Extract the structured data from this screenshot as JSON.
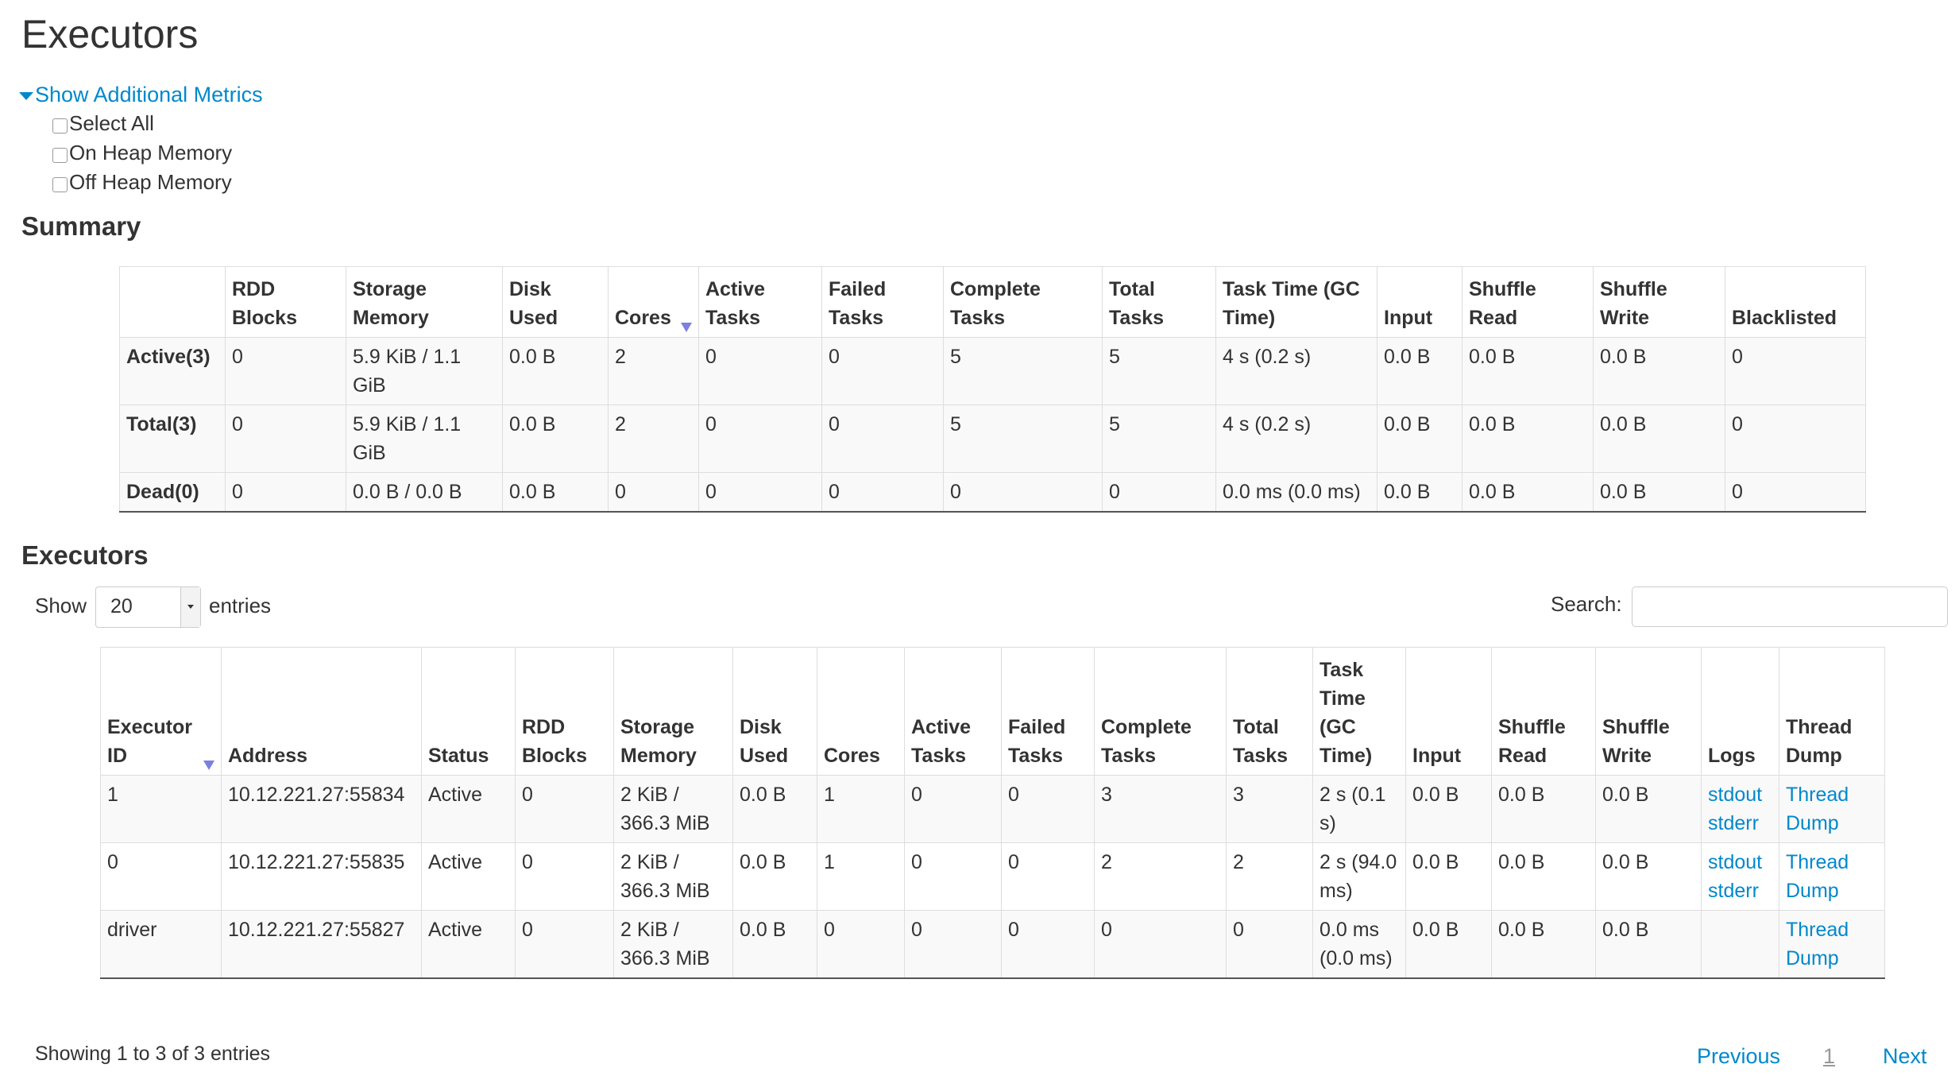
{
  "page_title": "Executors",
  "additional_metrics": {
    "toggle_label": "Show Additional Metrics",
    "options": [
      {
        "label": "Select All",
        "checked": false
      },
      {
        "label": "On Heap Memory",
        "checked": false
      },
      {
        "label": "Off Heap Memory",
        "checked": false
      }
    ]
  },
  "summary": {
    "heading": "Summary",
    "columns": [
      "",
      "RDD Blocks",
      "Storage Memory",
      "Disk Used",
      "Cores",
      "Active Tasks",
      "Failed Tasks",
      "Complete Tasks",
      "Total Tasks",
      "Task Time (GC Time)",
      "Input",
      "Shuffle Read",
      "Shuffle Write",
      "Blacklisted"
    ],
    "sorted_column": "Cores",
    "rows": [
      [
        "Active(3)",
        "0",
        "5.9 KiB / 1.1 GiB",
        "0.0 B",
        "2",
        "0",
        "0",
        "5",
        "5",
        "4 s (0.2 s)",
        "0.0 B",
        "0.0 B",
        "0.0 B",
        "0"
      ],
      [
        "Total(3)",
        "0",
        "5.9 KiB / 1.1 GiB",
        "0.0 B",
        "2",
        "0",
        "0",
        "5",
        "5",
        "4 s (0.2 s)",
        "0.0 B",
        "0.0 B",
        "0.0 B",
        "0"
      ],
      [
        "Dead(0)",
        "0",
        "0.0 B / 0.0 B",
        "0.0 B",
        "0",
        "0",
        "0",
        "0",
        "0",
        "0.0 ms (0.0 ms)",
        "0.0 B",
        "0.0 B",
        "0.0 B",
        "0"
      ]
    ]
  },
  "executors": {
    "heading": "Executors",
    "show_label": "Show",
    "entries_value": "20",
    "entries_label": "entries",
    "search_label": "Search:",
    "search_value": "",
    "columns": [
      "Executor ID",
      "Address",
      "Status",
      "RDD Blocks",
      "Storage Memory",
      "Disk Used",
      "Cores",
      "Active Tasks",
      "Failed Tasks",
      "Complete Tasks",
      "Total Tasks",
      "Task Time (GC Time)",
      "Input",
      "Shuffle Read",
      "Shuffle Write",
      "Logs",
      "Thread Dump"
    ],
    "sorted_column": "Executor ID",
    "rows": [
      {
        "cells": [
          "1",
          "10.12.221.27:55834",
          "Active",
          "0",
          "2 KiB / 366.3 MiB",
          "0.0 B",
          "1",
          "0",
          "0",
          "3",
          "3",
          "2 s (0.1 s)",
          "0.0 B",
          "0.0 B",
          "0.0 B"
        ],
        "logs": [
          "stdout",
          "stderr"
        ],
        "thread_dump": "Thread Dump"
      },
      {
        "cells": [
          "0",
          "10.12.221.27:55835",
          "Active",
          "0",
          "2 KiB / 366.3 MiB",
          "0.0 B",
          "1",
          "0",
          "0",
          "2",
          "2",
          "2 s (94.0 ms)",
          "0.0 B",
          "0.0 B",
          "0.0 B"
        ],
        "logs": [
          "stdout",
          "stderr"
        ],
        "thread_dump": "Thread Dump"
      },
      {
        "cells": [
          "driver",
          "10.12.221.27:55827",
          "Active",
          "0",
          "2 KiB / 366.3 MiB",
          "0.0 B",
          "0",
          "0",
          "0",
          "0",
          "0",
          "0.0 ms (0.0 ms)",
          "0.0 B",
          "0.0 B",
          "0.0 B"
        ],
        "logs": [],
        "thread_dump": "Thread Dump"
      }
    ],
    "info": "Showing 1 to 3 of 3 entries",
    "pagination": {
      "previous": "Previous",
      "current": "1",
      "next": "Next"
    }
  },
  "colors": {
    "link": "#0088cc",
    "sort_arrow": "#7b7fe0",
    "text": "#333333"
  }
}
